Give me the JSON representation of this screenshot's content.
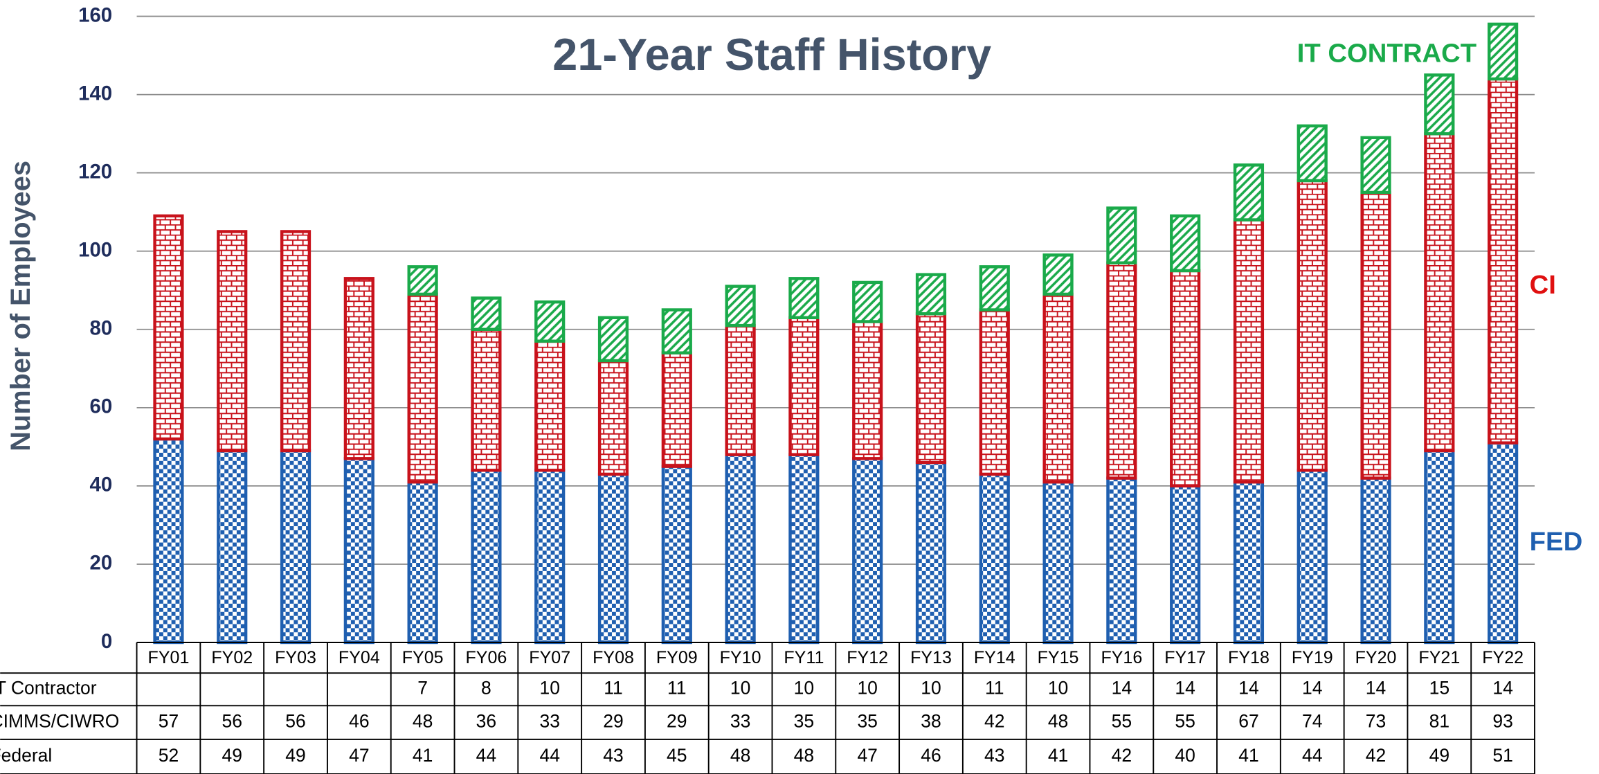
{
  "chart_data": {
    "type": "stacked_bar",
    "title": "21-Year Staff History",
    "y_label": "Number of Employees",
    "annotations": [
      "IT CONTRACT",
      "CI",
      "FED"
    ],
    "categories": [
      "FY01",
      "FY02",
      "FY03",
      "FY04",
      "FY05",
      "FY06",
      "FY07",
      "FY08",
      "FY09",
      "FY10",
      "FY11",
      "FY12",
      "FY13",
      "FY14",
      "FY15",
      "FY16",
      "FY17",
      "FY18",
      "FY19",
      "FY20",
      "FY21",
      "FY22"
    ],
    "series": [
      {
        "name": "Federal",
        "color": "#1f5fb0",
        "values": [
          52,
          49,
          49,
          47,
          41,
          44,
          44,
          43,
          45,
          48,
          48,
          47,
          46,
          43,
          41,
          42,
          40,
          41,
          44,
          42,
          49,
          51
        ]
      },
      {
        "name": "CIMMS/CIWRO",
        "color": "#c8121b",
        "values": [
          57,
          56,
          56,
          46,
          48,
          36,
          33,
          29,
          29,
          33,
          35,
          35,
          38,
          42,
          48,
          55,
          55,
          67,
          74,
          73,
          81,
          93
        ]
      },
      {
        "name": "IT Contractor",
        "color": "#1aaa4a",
        "values": [
          null,
          null,
          null,
          null,
          7,
          8,
          10,
          11,
          11,
          10,
          10,
          10,
          10,
          11,
          10,
          14,
          14,
          14,
          14,
          14,
          15,
          14
        ]
      }
    ],
    "ylim": [
      0,
      160
    ],
    "yticks": [
      0,
      20,
      40,
      60,
      80,
      100,
      120,
      140,
      160
    ],
    "grid": true
  }
}
